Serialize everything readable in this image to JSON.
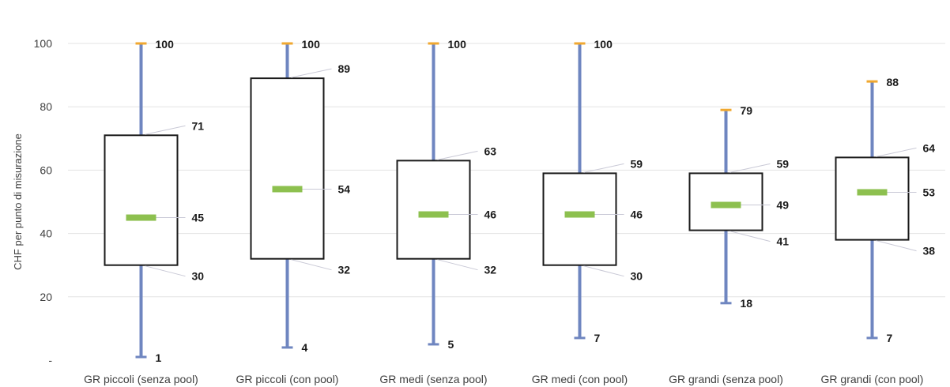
{
  "chart_data": {
    "type": "boxplot",
    "title": "",
    "ylabel": "CHF per punto di misurazione",
    "xlabel": "",
    "ylim": [
      0,
      100
    ],
    "y_ticks": [
      0,
      20,
      40,
      60,
      80,
      100
    ],
    "y_tick_labels": [
      "-",
      "20",
      "40",
      "60",
      "80",
      "100"
    ],
    "grid": "horizontal",
    "categories": [
      "GR piccoli (senza pool)",
      "GR piccoli (con pool)",
      "GR medi (senza pool)",
      "GR medi (con pool)",
      "GR grandi (senza pool)",
      "GR grandi (con pool)"
    ],
    "boxes": [
      {
        "min": 1,
        "q1": 30,
        "median": 45,
        "q3": 71,
        "max": 100
      },
      {
        "min": 4,
        "q1": 32,
        "median": 54,
        "q3": 89,
        "max": 100
      },
      {
        "min": 5,
        "q1": 32,
        "median": 46,
        "q3": 63,
        "max": 100
      },
      {
        "min": 7,
        "q1": 30,
        "median": 46,
        "q3": 59,
        "max": 100
      },
      {
        "min": 18,
        "q1": 41,
        "median": 49,
        "q3": 59,
        "max": 79
      },
      {
        "min": 7,
        "q1": 38,
        "median": 53,
        "q3": 64,
        "max": 88
      }
    ],
    "colors": {
      "whisker": "#6f86c0",
      "cap_top": "#f0a830",
      "median": "#8dc04f",
      "box_border": "#1a1a1a",
      "grid": "#e3e3e3",
      "leader": "#c9c9d6"
    }
  }
}
